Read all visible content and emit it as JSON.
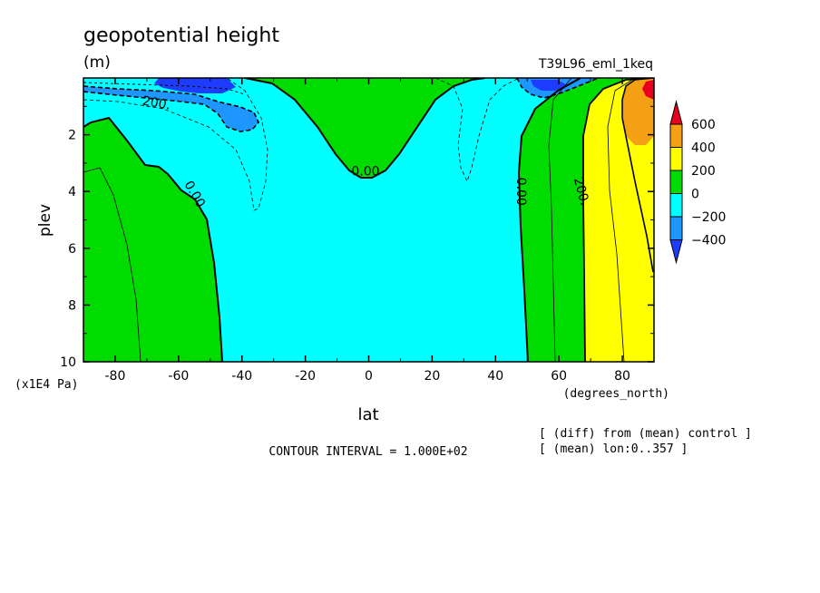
{
  "title": "geopotential height",
  "units": "(m)",
  "run_label": "T39L96_eml_1keq",
  "contour_interval_text": "CONTOUR INTERVAL = 1.000E+02",
  "note_lines": [
    "[ (diff) from (mean) control ]",
    "[ (mean) lon:0..357 ]"
  ],
  "chart_data": {
    "type": "heatmap",
    "title": "geopotential height",
    "xlabel": "lat",
    "x_unit_label": "(degrees_north)",
    "ylabel": "plev",
    "y_unit_label": "(x1E4 Pa)",
    "xlim": [
      -90,
      90
    ],
    "ylim": [
      10,
      0
    ],
    "x_ticks": [
      -80,
      -60,
      -40,
      -20,
      0,
      20,
      40,
      60,
      80
    ],
    "y_ticks": [
      2,
      4,
      6,
      8,
      10
    ],
    "contour_interval": 100,
    "contour_labels": [
      {
        "text": "200.",
        "lat": -67,
        "plev": 0.9
      },
      {
        "text": "0.00",
        "lat": -55,
        "plev": 4.1
      },
      {
        "text": "0.00",
        "lat": -1,
        "plev": 3.3
      },
      {
        "text": "0.00",
        "lat": 48,
        "plev": 4.0
      },
      {
        "text": "200.",
        "lat": 67,
        "plev": 4.0
      }
    ],
    "colorbar": {
      "ticks": [
        600,
        400,
        200,
        0,
        -200,
        -400
      ],
      "bins": [
        {
          "range": "> 600",
          "color": "#e8001e"
        },
        {
          "range": "400 to 600",
          "color": "#f5a014"
        },
        {
          "range": "200 to 400",
          "color": "#ffff00"
        },
        {
          "range": "0 to 200",
          "color": "#00dc00"
        },
        {
          "range": "-200 to 0",
          "color": "#00ffff"
        },
        {
          "range": "-400 to -200",
          "color": "#1e96ff"
        },
        {
          "range": "< -400",
          "color": "#1e3cff"
        }
      ]
    },
    "regions": [
      {
        "name": "sh-positive",
        "bin": "0 to 200"
      },
      {
        "name": "equatorial-positive",
        "bin": "0 to 200"
      },
      {
        "name": "negative-band",
        "bin": "-200 to 0"
      },
      {
        "name": "nh-positive",
        "bin": "0 to 200"
      },
      {
        "name": "nh-high",
        "bin": "200 to 400"
      },
      {
        "name": "nh-pole-cap",
        "bin": "400 to 600"
      },
      {
        "name": "nh-pole-max",
        "bin": "> 600"
      },
      {
        "name": "sh-upper-low",
        "bin": "-400 to -200"
      },
      {
        "name": "sh-upper-min",
        "bin": "< -400"
      },
      {
        "name": "nh-upper-low",
        "bin": "-400 to -200"
      },
      {
        "name": "nh-upper-min",
        "bin": "< -400"
      }
    ]
  }
}
